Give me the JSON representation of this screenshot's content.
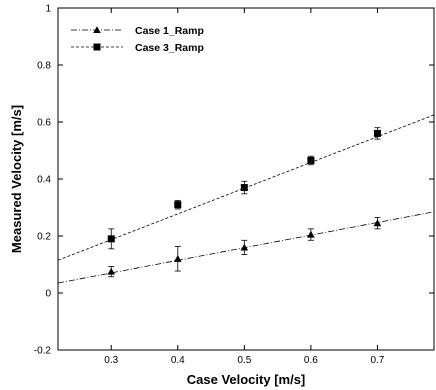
{
  "chart_data": {
    "type": "scatter",
    "xlabel": "Case Velocity [m/s]",
    "ylabel": "Measured Velocity [m/s]",
    "xlim": [
      0.22,
      0.785
    ],
    "ylim": [
      -0.2,
      1.0
    ],
    "x_ticks": [
      0.3,
      0.4,
      0.5,
      0.6,
      0.7
    ],
    "x_tick_labels": [
      "0.3",
      "0.4",
      "0.5",
      "0.6",
      "0.7"
    ],
    "y_ticks": [
      -0.2,
      0,
      0.2,
      0.4,
      0.6,
      0.8,
      1.0
    ],
    "y_tick_labels": [
      "-0.2",
      "0",
      "0.2",
      "0.4",
      "0.6",
      "0.8",
      "1"
    ],
    "grid": false,
    "legend_position": "top-left",
    "series": [
      {
        "name": "Case 1_Ramp",
        "marker": "triangle",
        "line_style": "dash-dot",
        "x": [
          0.3,
          0.4,
          0.5,
          0.6,
          0.7
        ],
        "y": [
          0.075,
          0.12,
          0.16,
          0.205,
          0.245
        ],
        "err": [
          0.018,
          0.043,
          0.025,
          0.02,
          0.02
        ],
        "fit_line": [
          [
            0.22,
            0.035
          ],
          [
            0.785,
            0.285
          ]
        ]
      },
      {
        "name": "Case 3_Ramp",
        "marker": "square",
        "line_style": "dashed",
        "x": [
          0.3,
          0.4,
          0.5,
          0.6,
          0.7
        ],
        "y": [
          0.19,
          0.31,
          0.37,
          0.465,
          0.56
        ],
        "err": [
          0.035,
          0.015,
          0.022,
          0.015,
          0.02
        ],
        "fit_line": [
          [
            0.22,
            0.115
          ],
          [
            0.785,
            0.625
          ]
        ]
      }
    ]
  }
}
